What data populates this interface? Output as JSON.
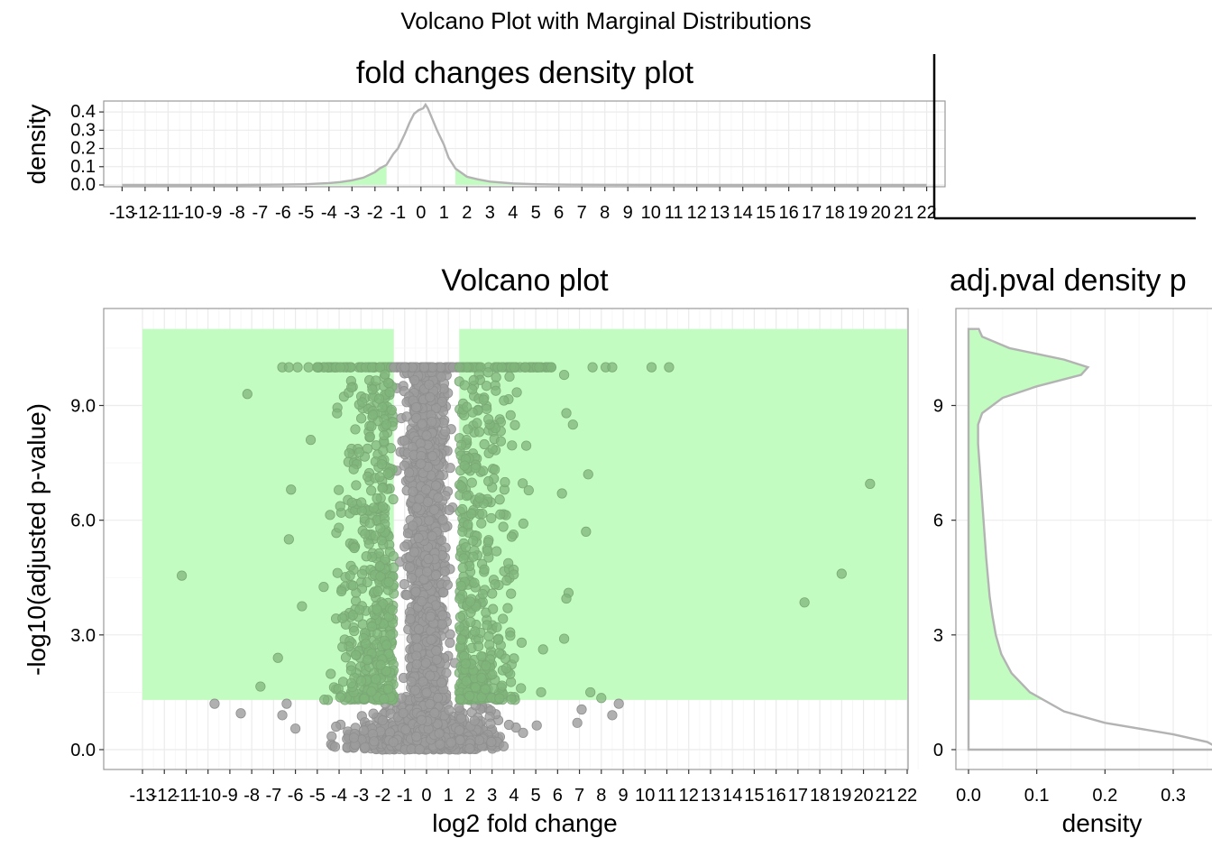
{
  "title": "Volcano Plot with Marginal Distributions",
  "colors": {
    "highlight": "#c3fcc0",
    "point": "#9c9c9c",
    "significant_point": "#80b57b",
    "density_line": "#b3b3b3",
    "grid": "#ebebeb",
    "panel_border": "#333333"
  },
  "chart_data": [
    {
      "type": "area",
      "title": "fold changes density plot",
      "xlabel": "",
      "ylabel": "density",
      "xlim": [
        -13.8,
        22.8
      ],
      "ylim": [
        0,
        0.45
      ],
      "x_ticks": [
        -13,
        -12,
        -11,
        -10,
        -9,
        -8,
        -7,
        -6,
        -5,
        -4,
        -3,
        -2,
        -1,
        0,
        1,
        2,
        3,
        4,
        5,
        6,
        7,
        8,
        9,
        10,
        11,
        12,
        13,
        14,
        15,
        16,
        17,
        18,
        19,
        20,
        21,
        22
      ],
      "x_tick_labels": [
        "-13",
        "-12",
        "-11",
        "-10",
        "-9",
        "-8",
        "-7",
        "-6",
        "-5",
        "-4",
        "-3",
        "-2",
        "-1",
        "0",
        "1",
        "2",
        "3",
        "4",
        "5",
        "6",
        "7",
        "8",
        "9",
        "10",
        "11",
        "12",
        "13",
        "14",
        "15",
        "16",
        "17",
        "18",
        "19",
        "20",
        "21",
        "22"
      ],
      "y_ticks": [
        0,
        0.1,
        0.2,
        0.3,
        0.4
      ],
      "y_tick_labels": [
        "0.0",
        "0.1",
        "0.2",
        "0.3",
        "0.4"
      ],
      "shaded_x_ranges": [
        [
          -13,
          -1.5
        ],
        [
          1.5,
          22
        ]
      ],
      "density": {
        "x": [
          -13,
          -8,
          -6,
          -5,
          -4,
          -3.5,
          -3,
          -2.5,
          -2,
          -1.8,
          -1.5,
          -1.2,
          -1,
          -0.7,
          -0.5,
          -0.3,
          -0.1,
          0.1,
          0.2,
          0.3,
          0.5,
          0.7,
          1,
          1.2,
          1.5,
          2,
          2.5,
          3,
          4,
          5,
          6,
          8,
          13,
          22
        ],
        "y": [
          0,
          0,
          0.002,
          0.004,
          0.01,
          0.016,
          0.025,
          0.04,
          0.07,
          0.09,
          0.11,
          0.17,
          0.2,
          0.28,
          0.34,
          0.39,
          0.41,
          0.42,
          0.44,
          0.42,
          0.36,
          0.3,
          0.22,
          0.15,
          0.09,
          0.045,
          0.03,
          0.018,
          0.008,
          0.004,
          0.002,
          0.001,
          0,
          0
        ]
      }
    },
    {
      "type": "scatter",
      "title": "Volcano plot",
      "xlabel": "log2 fold change",
      "ylabel": "-log10(adjusted p-value)",
      "xlim": [
        -14.8,
        22.8
      ],
      "ylim": [
        -0.7,
        11.3
      ],
      "x_ticks": [
        -13,
        -12,
        -11,
        -10,
        -9,
        -8,
        -7,
        -6,
        -5,
        -4,
        -3,
        -2,
        -1,
        0,
        1,
        2,
        3,
        4,
        5,
        6,
        7,
        8,
        9,
        10,
        11,
        12,
        13,
        14,
        15,
        16,
        17,
        18,
        19,
        20,
        21,
        22
      ],
      "x_tick_labels": [
        "-13",
        "-12",
        "-11",
        "-10",
        "-9",
        "-8",
        "-7",
        "-6",
        "-5",
        "-4",
        "-3",
        "-2",
        "-1",
        "0",
        "1",
        "2",
        "3",
        "4",
        "5",
        "6",
        "7",
        "8",
        "9",
        "10",
        "11",
        "12",
        "13",
        "14",
        "15",
        "16",
        "17",
        "18",
        "19",
        "20",
        "21",
        "22"
      ],
      "y_ticks": [
        0,
        3,
        6,
        9
      ],
      "y_tick_labels": [
        "0.0",
        "3.0",
        "6.0",
        "9.0"
      ],
      "highlight_regions": [
        {
          "x": [
            -13,
            -1.5
          ],
          "y": [
            1.3,
            11
          ]
        },
        {
          "x": [
            1.5,
            22
          ],
          "y": [
            1.3,
            11
          ]
        }
      ],
      "outlier_points": [
        {
          "x": -11.2,
          "y": 4.55
        },
        {
          "x": -9.7,
          "y": 1.2
        },
        {
          "x": -8.5,
          "y": 0.95
        },
        {
          "x": -8.2,
          "y": 9.3
        },
        {
          "x": -7.6,
          "y": 1.65
        },
        {
          "x": -6.8,
          "y": 2.4
        },
        {
          "x": -6.6,
          "y": 0.9
        },
        {
          "x": -6.4,
          "y": 1.2
        },
        {
          "x": -6.2,
          "y": 6.8
        },
        {
          "x": -6.3,
          "y": 5.5
        },
        {
          "x": -6.0,
          "y": 0.55
        },
        {
          "x": -5.3,
          "y": 8.1
        },
        {
          "x": -5.7,
          "y": 3.75
        },
        {
          "x": -6.6,
          "y": 10.0
        },
        {
          "x": -6.3,
          "y": 10.0
        },
        {
          "x": -5.9,
          "y": 10.0
        },
        {
          "x": -5.4,
          "y": 10.0
        },
        {
          "x": -5.0,
          "y": 10.0
        },
        {
          "x": 6.3,
          "y": 9.8
        },
        {
          "x": 6.4,
          "y": 8.8
        },
        {
          "x": 6.7,
          "y": 8.5
        },
        {
          "x": 7.4,
          "y": 7.2
        },
        {
          "x": 6.2,
          "y": 6.7
        },
        {
          "x": 7.3,
          "y": 5.7
        },
        {
          "x": 6.5,
          "y": 4.1
        },
        {
          "x": 6.4,
          "y": 3.95
        },
        {
          "x": 6.3,
          "y": 2.9
        },
        {
          "x": 7.5,
          "y": 1.5
        },
        {
          "x": 8.0,
          "y": 1.35
        },
        {
          "x": 8.8,
          "y": 1.2
        },
        {
          "x": 7.1,
          "y": 1.05
        },
        {
          "x": 8.5,
          "y": 0.9
        },
        {
          "x": 6.9,
          "y": 0.7
        },
        {
          "x": 7.6,
          "y": 10.0
        },
        {
          "x": 8.2,
          "y": 10.0
        },
        {
          "x": 8.5,
          "y": 10.0
        },
        {
          "x": 10.3,
          "y": 10.0
        },
        {
          "x": 11.1,
          "y": 10.0
        },
        {
          "x": 17.3,
          "y": 3.85
        },
        {
          "x": 19.0,
          "y": 4.6
        },
        {
          "x": 20.3,
          "y": 6.95
        }
      ],
      "bulk_description": "thousands of points concentrated near x=0 up to y=10; green-tinted points in -6..-1.5 and 1.5..6 where y>1.3"
    },
    {
      "type": "area",
      "title": "adj.pval density p",
      "xlabel": "density",
      "ylabel": "",
      "orientation": "horizontal",
      "xlim": [
        -0.03,
        0.36
      ],
      "ylim": [
        -0.7,
        11.3
      ],
      "x_ticks": [
        0,
        0.1,
        0.2,
        0.3
      ],
      "x_tick_labels": [
        "0.0",
        "0.1",
        "0.2",
        "0.3"
      ],
      "y_ticks": [
        0,
        3,
        6,
        9
      ],
      "y_tick_labels": [
        "0",
        "3",
        "6",
        "9"
      ],
      "shaded_y_range": [
        1.3,
        11
      ],
      "density": {
        "y": [
          0,
          0.1,
          0.2,
          0.4,
          0.7,
          1.0,
          1.5,
          2.0,
          2.5,
          3.0,
          3.5,
          4.0,
          5.0,
          6.0,
          7.0,
          8.0,
          8.5,
          8.8,
          9.2,
          9.5,
          9.8,
          10.0,
          10.2,
          10.5,
          10.8,
          11.0
        ],
        "x": [
          0.36,
          0.36,
          0.35,
          0.3,
          0.2,
          0.14,
          0.09,
          0.063,
          0.048,
          0.04,
          0.035,
          0.031,
          0.026,
          0.022,
          0.018,
          0.014,
          0.014,
          0.02,
          0.05,
          0.1,
          0.165,
          0.175,
          0.14,
          0.06,
          0.02,
          0.015
        ]
      }
    },
    {
      "type": "empty",
      "title": ""
    }
  ]
}
